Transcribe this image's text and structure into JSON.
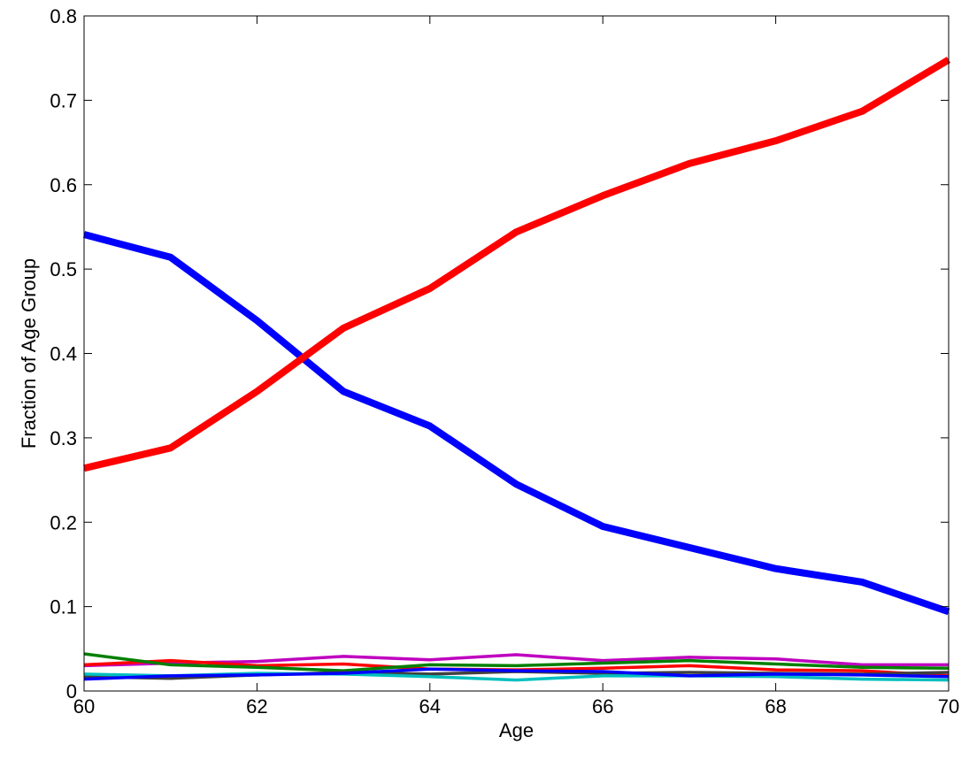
{
  "chart_data": {
    "type": "line",
    "title": "",
    "xlabel": "Age",
    "ylabel": "Fraction of Age Group",
    "xlim": [
      60,
      70
    ],
    "ylim": [
      0,
      0.8
    ],
    "xticks": [
      60,
      62,
      64,
      66,
      68,
      70
    ],
    "xtick_labels": [
      "60",
      "62",
      "64",
      "66",
      "68",
      "70"
    ],
    "yticks": [
      0,
      0.1,
      0.2,
      0.3,
      0.4,
      0.5,
      0.6,
      0.7,
      0.8
    ],
    "ytick_labels": [
      "0",
      "0.1",
      "0.2",
      "0.3",
      "0.4",
      "0.5",
      "0.6",
      "0.7",
      "0.8"
    ],
    "grid": false,
    "legend": "none",
    "x": [
      60,
      61,
      62,
      63,
      64,
      65,
      66,
      67,
      68,
      69,
      70
    ],
    "series": [
      {
        "color": "#0000ff",
        "thick": true,
        "values": [
          0.541,
          0.514,
          0.439,
          0.355,
          0.314,
          0.245,
          0.195,
          0.17,
          0.145,
          0.129,
          0.094
        ]
      },
      {
        "color": "#ff0000",
        "thick": true,
        "values": [
          0.264,
          0.288,
          0.355,
          0.43,
          0.477,
          0.544,
          0.587,
          0.625,
          0.652,
          0.687,
          0.748
        ]
      },
      {
        "color": "#bf00bf",
        "thick": false,
        "values": [
          0.03,
          0.033,
          0.035,
          0.041,
          0.037,
          0.043,
          0.036,
          0.04,
          0.038,
          0.031,
          0.031
        ]
      },
      {
        "color": "#ff0000",
        "thick": false,
        "values": [
          0.031,
          0.036,
          0.03,
          0.032,
          0.026,
          0.025,
          0.027,
          0.03,
          0.025,
          0.024,
          0.018
        ]
      },
      {
        "color": "#008000",
        "thick": false,
        "values": [
          0.044,
          0.031,
          0.028,
          0.024,
          0.031,
          0.03,
          0.033,
          0.036,
          0.032,
          0.028,
          0.027
        ]
      },
      {
        "color": "#404040",
        "thick": false,
        "values": [
          0.017,
          0.015,
          0.019,
          0.022,
          0.02,
          0.023,
          0.021,
          0.022,
          0.021,
          0.02,
          0.022
        ]
      },
      {
        "color": "#00bfbf",
        "thick": false,
        "values": [
          0.02,
          0.018,
          0.021,
          0.02,
          0.017,
          0.013,
          0.018,
          0.018,
          0.017,
          0.014,
          0.013
        ]
      },
      {
        "color": "#0000ff",
        "thick": false,
        "values": [
          0.014,
          0.018,
          0.019,
          0.021,
          0.026,
          0.024,
          0.023,
          0.018,
          0.02,
          0.019,
          0.017
        ]
      }
    ]
  }
}
